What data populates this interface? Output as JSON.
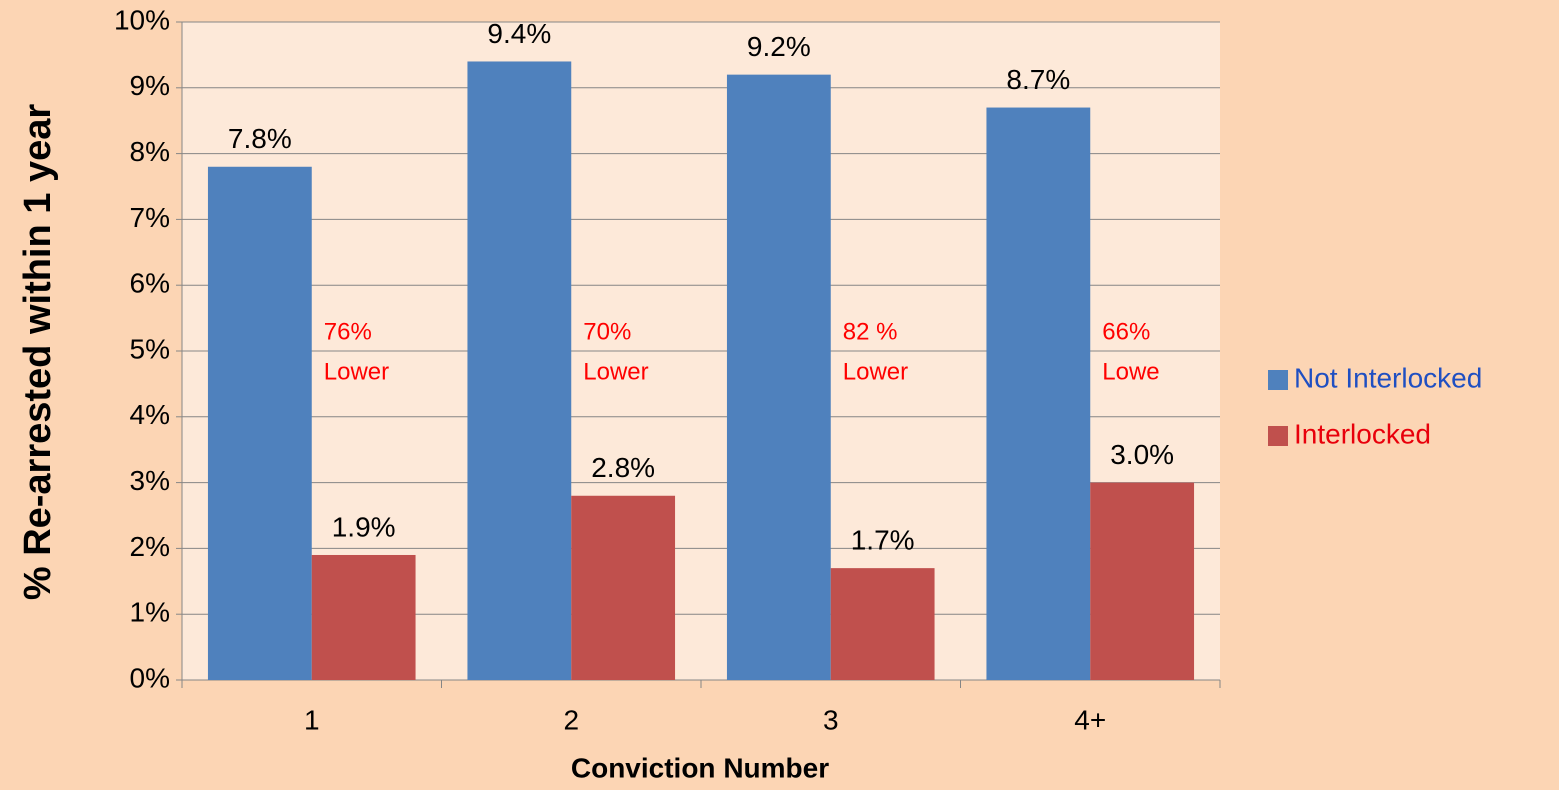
{
  "chart_data": {
    "type": "bar",
    "categories": [
      "1",
      "2",
      "3",
      "4+"
    ],
    "series": [
      {
        "name": "Not Interlocked",
        "color": "#4f81bd",
        "legend_text_color": "#1f4fc2",
        "values": [
          7.8,
          9.4,
          9.2,
          8.7
        ],
        "value_labels": [
          "7.8%",
          "9.4%",
          "9.2%",
          "8.7%"
        ]
      },
      {
        "name": "Interlocked",
        "color": "#c0504d",
        "legend_text_color": "#e8000b",
        "values": [
          1.9,
          2.8,
          1.7,
          3.0
        ],
        "value_labels": [
          "1.9%",
          "2.8%",
          "1.7%",
          "3.0%"
        ]
      }
    ],
    "annotations": [
      [
        "76%",
        "Lower"
      ],
      [
        "70%",
        "Lower"
      ],
      [
        "82 %",
        "Lower"
      ],
      [
        "66%",
        "Lowe"
      ]
    ],
    "annotation_color": "#ff0000",
    "x_label": "Conviction Number",
    "y_label": "% Re-arrested within 1 year",
    "ylim": [
      0,
      10
    ],
    "yticks": [
      {
        "value": 0,
        "label": "0%"
      },
      {
        "value": 1,
        "label": "1%"
      },
      {
        "value": 2,
        "label": "2%"
      },
      {
        "value": 3,
        "label": "3%"
      },
      {
        "value": 4,
        "label": "4%"
      },
      {
        "value": 5,
        "label": "5%"
      },
      {
        "value": 6,
        "label": "6%"
      },
      {
        "value": 7,
        "label": "7%"
      },
      {
        "value": 8,
        "label": "8%"
      },
      {
        "value": 9,
        "label": "9%"
      },
      {
        "value": 10,
        "label": "10%"
      }
    ],
    "grid": true,
    "legend": "right"
  }
}
